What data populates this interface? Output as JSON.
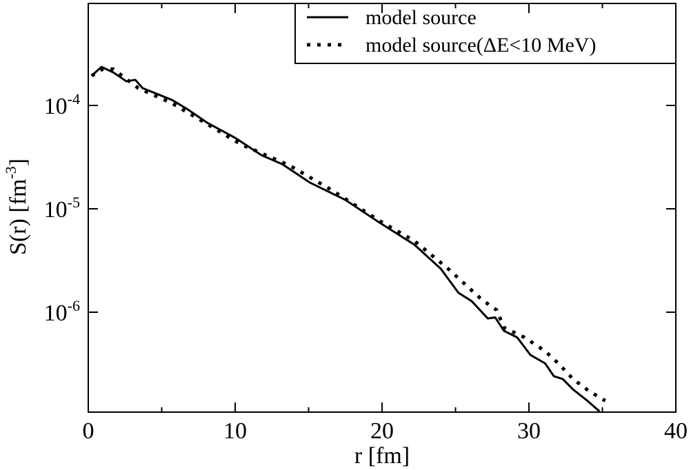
{
  "chart_data": {
    "type": "line",
    "xlabel": "r [fm]",
    "ylabel": {
      "text": "S(r) [fm",
      "sup": "-3",
      "tail": "]"
    },
    "xlim": [
      0,
      40
    ],
    "xticks": [
      0,
      10,
      20,
      30,
      40
    ],
    "xminor": [
      5,
      15,
      25,
      35
    ],
    "ylim": [
      1.08e-07,
      0.00097
    ],
    "log_y": true,
    "yticks": [
      {
        "value": 0.0001,
        "label": "10-4"
      },
      {
        "value": 1e-05,
        "label": "10-5"
      },
      {
        "value": 1e-06,
        "label": "10-6"
      }
    ],
    "legend": "upper right",
    "series": [
      {
        "name": "model source",
        "color": "#000000",
        "style": "solid",
        "x": [
          0.23,
          0.9,
          1.7,
          2.6,
          3.2,
          3.7,
          5.7,
          6.7,
          8.1,
          10,
          11.8,
          13.2,
          15.1,
          17.5,
          19.8,
          22.2,
          24,
          25.2,
          26.1,
          27.2,
          27.7,
          28.3,
          29.2,
          30.1,
          31.1,
          31.7,
          32.3,
          33,
          33.9,
          34.8
        ],
        "values": [
          0.000194,
          0.000236,
          0.000209,
          0.000171,
          0.000177,
          0.000147,
          0.000113,
          9.3e-05,
          6.8e-05,
          4.86e-05,
          3.3e-05,
          2.71e-05,
          1.79e-05,
          1.22e-05,
          7.4e-06,
          4.5e-06,
          2.63e-06,
          1.54e-06,
          1.28e-06,
          8.7e-07,
          8.9e-07,
          6.6e-07,
          5.7e-07,
          3.86e-07,
          3.2e-07,
          2.4e-07,
          2.26e-07,
          1.79e-07,
          1.42e-07,
          1.1e-07
        ]
      },
      {
        "name": "model source(ΔE<10 MeV)",
        "color": "#000000",
        "style": "dotted",
        "x": [
          0.23,
          1,
          1.7,
          3.4,
          5.7,
          8.1,
          10.4,
          13.7,
          16.5,
          19.8,
          22.2,
          24.5,
          26.8,
          27.8,
          28.3,
          29.7,
          31.1,
          32,
          33,
          34.1,
          35.2
        ],
        "values": [
          0.000194,
          0.000225,
          0.000225,
          0.000147,
          0.000105,
          6.6e-05,
          4.2e-05,
          2.63e-05,
          1.54e-05,
          7.7e-06,
          4.9e-06,
          2.63e-06,
          1.32e-06,
          1.05e-06,
          7.1e-07,
          5.7e-07,
          4.2e-07,
          3.2e-07,
          2.26e-07,
          1.72e-07,
          1.39e-07
        ]
      }
    ]
  }
}
